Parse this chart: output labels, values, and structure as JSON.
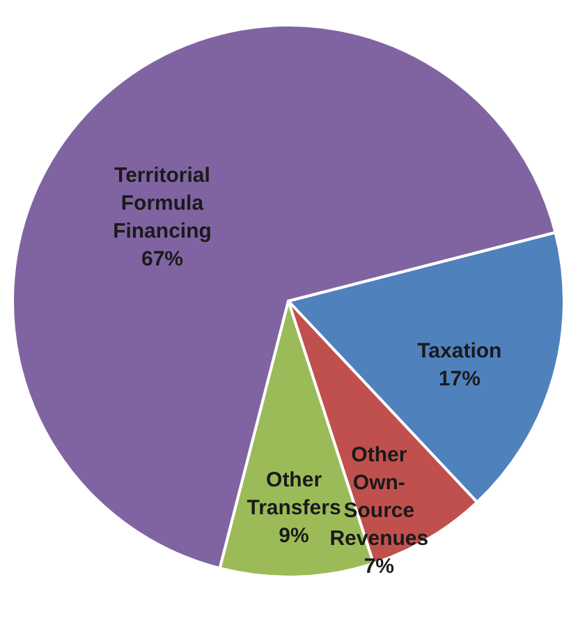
{
  "chart_data": {
    "type": "pie",
    "categories": [
      "Taxation",
      "Other Own-Source Revenues",
      "Other Transfers",
      "Territorial Formula Financing"
    ],
    "values": [
      17,
      7,
      9,
      67
    ],
    "colors": [
      "#4f81bd",
      "#c0504d",
      "#9bbb59",
      "#8064a2"
    ],
    "value_labels": [
      "17%",
      "7%",
      "9%",
      "67%"
    ],
    "legend": false
  }
}
